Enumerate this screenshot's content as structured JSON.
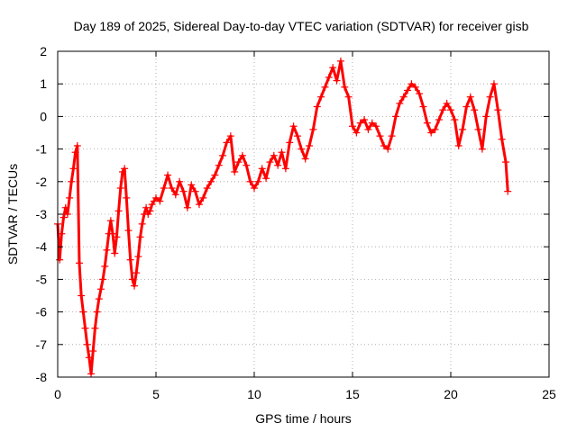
{
  "chart_data": {
    "type": "scatter",
    "title": "Day 189 of 2025, Sidereal Day-to-day VTEC variation (SDTVAR) for receiver gisb",
    "xlabel": "GPS time / hours",
    "ylabel": "SDTVAR / TECUs",
    "xlim": [
      0,
      25
    ],
    "ylim": [
      -8,
      2
    ],
    "xticks": [
      0,
      5,
      10,
      15,
      20,
      25
    ],
    "yticks": [
      -8,
      -7,
      -6,
      -5,
      -4,
      -3,
      -2,
      -1,
      0,
      1,
      2
    ],
    "grid": true,
    "marker": "plus",
    "series": [
      {
        "name": "SDTVAR",
        "color": "#ff0000",
        "x": [
          0.0,
          0.1,
          0.2,
          0.3,
          0.4,
          0.5,
          0.6,
          0.7,
          0.8,
          0.9,
          1.0,
          1.1,
          1.2,
          1.3,
          1.4,
          1.5,
          1.6,
          1.7,
          1.8,
          1.9,
          2.0,
          2.1,
          2.2,
          2.3,
          2.4,
          2.5,
          2.6,
          2.7,
          2.8,
          2.9,
          3.0,
          3.1,
          3.2,
          3.3,
          3.4,
          3.5,
          3.6,
          3.7,
          3.8,
          3.9,
          4.0,
          4.1,
          4.2,
          4.3,
          4.4,
          4.5,
          4.6,
          4.7,
          4.8,
          4.9,
          5.0,
          5.2,
          5.4,
          5.6,
          5.8,
          6.0,
          6.2,
          6.4,
          6.6,
          6.8,
          7.0,
          7.2,
          7.4,
          7.6,
          7.8,
          8.0,
          8.2,
          8.4,
          8.6,
          8.8,
          9.0,
          9.2,
          9.4,
          9.6,
          9.8,
          10.0,
          10.2,
          10.4,
          10.6,
          10.8,
          11.0,
          11.2,
          11.4,
          11.6,
          11.8,
          12.0,
          12.2,
          12.4,
          12.6,
          12.8,
          13.0,
          13.2,
          13.4,
          13.6,
          13.8,
          14.0,
          14.2,
          14.4,
          14.6,
          14.8,
          15.0,
          15.2,
          15.4,
          15.6,
          15.8,
          16.0,
          16.2,
          16.4,
          16.6,
          16.8,
          17.0,
          17.2,
          17.4,
          17.6,
          17.8,
          18.0,
          18.2,
          18.4,
          18.6,
          18.8,
          19.0,
          19.2,
          19.4,
          19.6,
          19.8,
          20.0,
          20.2,
          20.4,
          20.6,
          20.8,
          21.0,
          21.2,
          21.4,
          21.6,
          21.8,
          22.0,
          22.2,
          22.4,
          22.6,
          22.8,
          22.9
        ],
        "y": [
          -3.3,
          -4.4,
          -3.6,
          -3.1,
          -2.8,
          -3.0,
          -2.5,
          -2.0,
          -1.6,
          -1.1,
          -0.9,
          -4.5,
          -5.5,
          -6.0,
          -6.5,
          -7.0,
          -7.4,
          -7.9,
          -7.2,
          -6.5,
          -6.0,
          -5.6,
          -5.3,
          -5.0,
          -4.6,
          -4.1,
          -3.6,
          -3.2,
          -3.6,
          -4.2,
          -3.7,
          -2.9,
          -2.2,
          -1.7,
          -1.6,
          -2.5,
          -3.5,
          -4.4,
          -5.0,
          -5.2,
          -4.8,
          -4.3,
          -3.7,
          -3.3,
          -3.0,
          -2.8,
          -3.0,
          -2.9,
          -2.7,
          -2.6,
          -2.5,
          -2.6,
          -2.2,
          -1.8,
          -2.2,
          -2.4,
          -2.0,
          -2.3,
          -2.8,
          -2.1,
          -2.3,
          -2.7,
          -2.5,
          -2.2,
          -2.0,
          -1.8,
          -1.5,
          -1.2,
          -0.8,
          -0.6,
          -1.7,
          -1.4,
          -1.2,
          -1.5,
          -2.0,
          -2.2,
          -2.0,
          -1.6,
          -1.9,
          -1.4,
          -1.2,
          -1.5,
          -1.1,
          -1.6,
          -0.8,
          -0.3,
          -0.6,
          -1.0,
          -1.3,
          -0.9,
          -0.4,
          0.3,
          0.6,
          0.9,
          1.2,
          1.5,
          1.1,
          1.7,
          0.9,
          0.6,
          -0.3,
          -0.5,
          -0.2,
          -0.1,
          -0.4,
          -0.2,
          -0.3,
          -0.6,
          -0.9,
          -1.0,
          -0.6,
          0.0,
          0.4,
          0.6,
          0.8,
          1.0,
          0.9,
          0.7,
          0.3,
          -0.2,
          -0.5,
          -0.4,
          -0.1,
          0.2,
          0.4,
          0.2,
          -0.1,
          -0.9,
          -0.4,
          0.3,
          0.6,
          0.2,
          -0.4,
          -1.0,
          0.0,
          0.6,
          1.0,
          0.2,
          -0.7,
          -1.4,
          -2.3
        ]
      }
    ]
  }
}
